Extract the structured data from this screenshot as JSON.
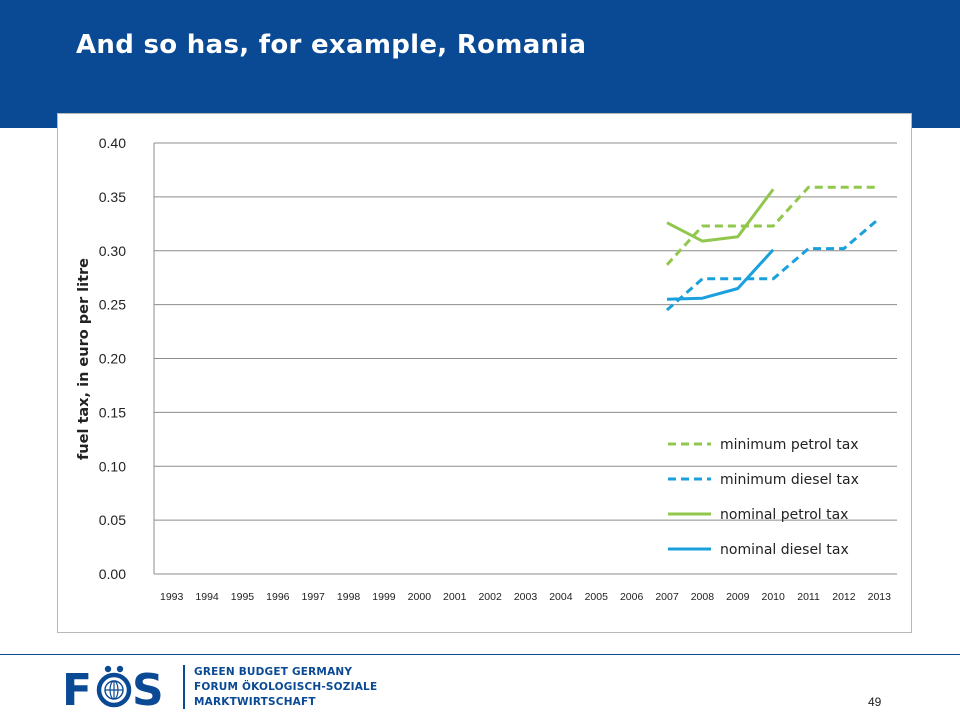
{
  "slide": {
    "title": "And so has, for example, Romania",
    "page_number": "49"
  },
  "footer": {
    "logo": {
      "text": "FÖS",
      "icon": "globe-icon"
    },
    "org_lines": [
      "GREEN BUDGET GERMANY",
      "FORUM ÖKOLOGISCH-SOZIALE",
      "MARKTWIRTSCHAFT"
    ]
  },
  "colors": {
    "brand_blue": "#0a4a94",
    "petrol_green": "#92c74d",
    "diesel_blue": "#19a0dd"
  },
  "chart_data": {
    "type": "line",
    "title": "",
    "xlabel": "",
    "ylabel": "fuel tax, in euro per litre",
    "categories": [
      "1993",
      "1994",
      "1995",
      "1996",
      "1997",
      "1998",
      "1999",
      "2000",
      "2001",
      "2002",
      "2003",
      "2004",
      "2005",
      "2006",
      "2007",
      "2008",
      "2009",
      "2010",
      "2011",
      "2012",
      "2013"
    ],
    "y_ticks": [
      "0.00",
      "0.05",
      "0.10",
      "0.15",
      "0.20",
      "0.25",
      "0.30",
      "0.35",
      "0.40"
    ],
    "ylim": [
      0,
      0.4
    ],
    "grid": true,
    "legend_position": "bottom-right",
    "series": [
      {
        "name": "minimum petrol tax",
        "color": "#92c74d",
        "dashed": true,
        "points": [
          [
            2007,
            0.287
          ],
          [
            2008,
            0.323
          ],
          [
            2009,
            0.323
          ],
          [
            2010,
            0.323
          ],
          [
            2011,
            0.359
          ],
          [
            2012,
            0.359
          ],
          [
            2013,
            0.359
          ]
        ]
      },
      {
        "name": "minimum diesel tax",
        "color": "#19a0dd",
        "dashed": true,
        "points": [
          [
            2007,
            0.245
          ],
          [
            2008,
            0.274
          ],
          [
            2009,
            0.274
          ],
          [
            2010,
            0.274
          ],
          [
            2011,
            0.302
          ],
          [
            2012,
            0.302
          ],
          [
            2013,
            0.33
          ]
        ]
      },
      {
        "name": "nominal petrol tax",
        "color": "#92c74d",
        "dashed": false,
        "points": [
          [
            2007,
            0.326
          ],
          [
            2008,
            0.309
          ],
          [
            2009,
            0.313
          ],
          [
            2010,
            0.357
          ]
        ]
      },
      {
        "name": "nominal diesel tax",
        "color": "#19a0dd",
        "dashed": false,
        "points": [
          [
            2007,
            0.255
          ],
          [
            2008,
            0.256
          ],
          [
            2009,
            0.265
          ],
          [
            2010,
            0.301
          ]
        ]
      }
    ]
  }
}
